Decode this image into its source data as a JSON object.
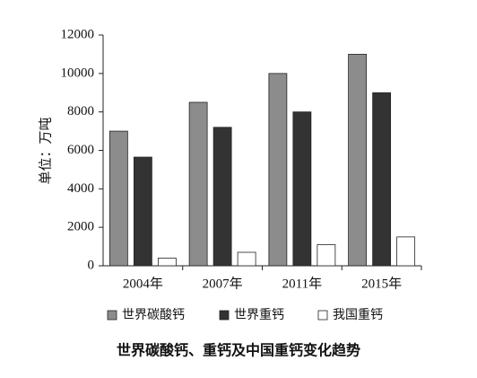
{
  "chart_data": {
    "type": "bar",
    "title": "世界碳酸钙、重钙及中国重钙变化趋势",
    "y_label": "单位：万吨",
    "categories": [
      "2004年",
      "2007年",
      "2011年",
      "2015年"
    ],
    "series": [
      {
        "name": "世界碳酸钙",
        "color": "#8c8c8c",
        "values": [
          7000,
          8500,
          10000,
          11000
        ]
      },
      {
        "name": "世界重钙",
        "color": "#333333",
        "values": [
          5650,
          7200,
          8000,
          9000
        ]
      },
      {
        "name": "我国重钙",
        "color": "#ffffff",
        "values": [
          400,
          700,
          1100,
          1500
        ]
      }
    ],
    "ylim": [
      0,
      12000
    ],
    "yticks": [
      0,
      2000,
      4000,
      6000,
      8000,
      10000,
      12000
    ],
    "grid": false
  }
}
